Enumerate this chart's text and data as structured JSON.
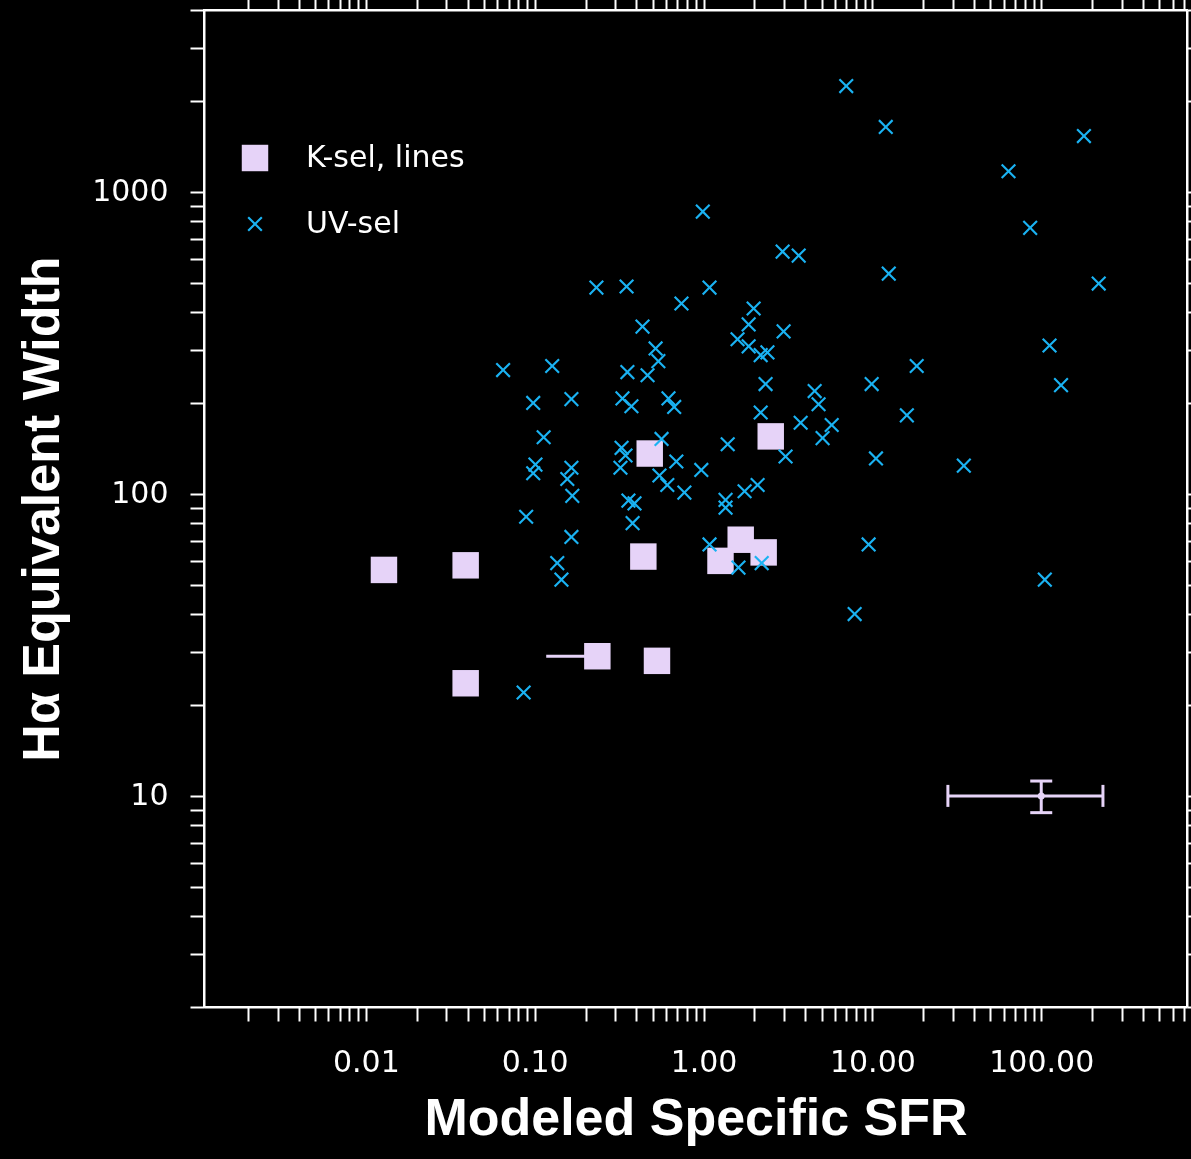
{
  "chart_data": {
    "type": "scatter",
    "xlabel": "Modeled Specific SFR",
    "ylabel": "Hα Equivalent Width",
    "log": "xy",
    "legend": "top left",
    "xlim": [
      0.0011,
      730
    ],
    "ylim": [
      2,
      4000
    ],
    "xticks": [
      {
        "value": 0.002,
        "label": null
      },
      {
        "value": 0.003,
        "label": null
      },
      {
        "value": 0.004,
        "label": null
      },
      {
        "value": 0.005,
        "label": null
      },
      {
        "value": 0.006,
        "label": null
      },
      {
        "value": 0.007,
        "label": null
      },
      {
        "value": 0.008,
        "label": null
      },
      {
        "value": 0.009,
        "label": null
      },
      {
        "value": 0.01,
        "label": "0.01"
      },
      {
        "value": 0.02,
        "label": null
      },
      {
        "value": 0.03,
        "label": null
      },
      {
        "value": 0.04,
        "label": null
      },
      {
        "value": 0.05,
        "label": null
      },
      {
        "value": 0.06,
        "label": null
      },
      {
        "value": 0.07,
        "label": null
      },
      {
        "value": 0.08,
        "label": null
      },
      {
        "value": 0.09,
        "label": null
      },
      {
        "value": 0.1,
        "label": "0.10"
      },
      {
        "value": 0.2,
        "label": null
      },
      {
        "value": 0.3,
        "label": null
      },
      {
        "value": 0.4,
        "label": null
      },
      {
        "value": 0.5,
        "label": null
      },
      {
        "value": 0.6,
        "label": null
      },
      {
        "value": 0.7,
        "label": null
      },
      {
        "value": 0.8,
        "label": null
      },
      {
        "value": 0.9,
        "label": null
      },
      {
        "value": 1,
        "label": "1.00"
      },
      {
        "value": 2,
        "label": null
      },
      {
        "value": 3,
        "label": null
      },
      {
        "value": 4,
        "label": null
      },
      {
        "value": 5,
        "label": null
      },
      {
        "value": 6,
        "label": null
      },
      {
        "value": 7,
        "label": null
      },
      {
        "value": 8,
        "label": null
      },
      {
        "value": 9,
        "label": null
      },
      {
        "value": 10,
        "label": "10.00"
      },
      {
        "value": 20,
        "label": null
      },
      {
        "value": 30,
        "label": null
      },
      {
        "value": 40,
        "label": null
      },
      {
        "value": 50,
        "label": null
      },
      {
        "value": 60,
        "label": null
      },
      {
        "value": 70,
        "label": null
      },
      {
        "value": 80,
        "label": null
      },
      {
        "value": 90,
        "label": null
      },
      {
        "value": 100,
        "label": "100.00"
      },
      {
        "value": 200,
        "label": null
      },
      {
        "value": 300,
        "label": null
      },
      {
        "value": 400,
        "label": null
      },
      {
        "value": 500,
        "label": null
      },
      {
        "value": 600,
        "label": null
      },
      {
        "value": 700,
        "label": null
      }
    ],
    "yticks": [
      {
        "value": 2,
        "label": null
      },
      {
        "value": 3,
        "label": null
      },
      {
        "value": 4,
        "label": null
      },
      {
        "value": 5,
        "label": null
      },
      {
        "value": 6,
        "label": null
      },
      {
        "value": 7,
        "label": null
      },
      {
        "value": 8,
        "label": null
      },
      {
        "value": 9,
        "label": null
      },
      10,
      {
        "value": 20,
        "label": null
      },
      {
        "value": 30,
        "label": null
      },
      {
        "value": 40,
        "label": null
      },
      {
        "value": 50,
        "label": null
      },
      {
        "value": 60,
        "label": null
      },
      {
        "value": 70,
        "label": null
      },
      {
        "value": 80,
        "label": null
      },
      {
        "value": 90,
        "label": null
      },
      100,
      {
        "value": 200,
        "label": null
      },
      {
        "value": 300,
        "label": null
      },
      {
        "value": 400,
        "label": null
      },
      {
        "value": 500,
        "label": null
      },
      {
        "value": 600,
        "label": null
      },
      {
        "value": 700,
        "label": null
      },
      {
        "value": 800,
        "label": null
      },
      {
        "value": 900,
        "label": null
      },
      1000,
      {
        "value": 2000,
        "label": null
      },
      {
        "value": 3000,
        "label": null
      },
      {
        "value": 4000,
        "label": null
      }
    ],
    "series": [
      {
        "name": "K-sel, lines",
        "color": "#e6d3f8",
        "marker": "square",
        "x": [
          0.0128,
          0.039,
          0.235,
          0.039,
          0.48,
          2.5,
          0.44,
          1.66,
          2.27,
          1.26,
          0.53
        ],
        "values": [
          56,
          58,
          29,
          23.6,
          136,
          155,
          62,
          70.5,
          64,
          60,
          28
        ],
        "xerrors": [
          null,
          null,
          [
            0.117,
            0.235
          ],
          null,
          null,
          null,
          null,
          null,
          null,
          null,
          null
        ]
      },
      {
        "name": "UV-sel",
        "color": "#1ab2f2",
        "marker": "cross",
        "x": [
          7.0,
          12.0,
          179,
          64,
          0.99,
          86,
          12.5,
          219,
          2.94,
          3.66,
          0.232,
          0.35,
          1.085,
          0.74,
          1.98,
          0.435,
          1.85,
          2.98,
          1.59,
          1.85,
          2.18,
          2.39,
          0.52,
          0.54,
          112,
          0.065,
          0.127,
          0.354,
          0.466,
          18.3,
          2.33,
          9.9,
          131,
          4.55,
          0.62,
          0.331,
          0.098,
          0.165,
          0.67,
          0.374,
          4.8,
          16,
          2.18,
          3.76,
          5.74,
          0.113,
          5.07,
          1.39,
          0.327,
          0.564,
          0.345,
          3.06,
          10.5,
          0.101,
          0.098,
          0.165,
          0.156,
          0.322,
          34.8,
          0.69,
          0.548,
          0.97,
          0.61,
          0.77,
          0.359,
          0.39,
          0.167,
          1.35,
          1.35,
          1.75,
          2.09,
          0.089,
          0.38,
          0.165,
          1.085,
          9.5,
          0.136,
          0.144,
          1.61,
          2.21,
          105,
          7.85,
          0.086
        ],
        "values": [
          2240,
          1640,
          1530,
          1170,
          860,
          760,
          536,
          497,
          634,
          615,
          482,
          486,
          482,
          427,
          411,
          358,
          364,
          345,
          325,
          308,
          288,
          294,
          303,
          275,
          310,
          257,
          265,
          253,
          247,
          265,
          231,
          231,
          229,
          219,
          207,
          207,
          200,
          206,
          194,
          195,
          198,
          182,
          186,
          172,
          169,
          154,
          153,
          146,
          142,
          152,
          134,
          133,
          131,
          125,
          117,
          122,
          112,
          122,
          124,
          128,
          115,
          120,
          107,
          101,
          95,
          93,
          98.5,
          95.5,
          90,
          102,
          107,
          84,
          80,
          72,
          68,
          68,
          59,
          52,
          57,
          59,
          52,
          40,
          22
        ]
      },
      {
        "color": "#e6d3f8",
        "marker": "none",
        "x": [
          100
        ],
        "values": [
          10
        ],
        "errors": [
          [
            8.8,
            11.2
          ]
        ],
        "xerrors": [
          [
            28,
            232
          ]
        ]
      }
    ]
  }
}
